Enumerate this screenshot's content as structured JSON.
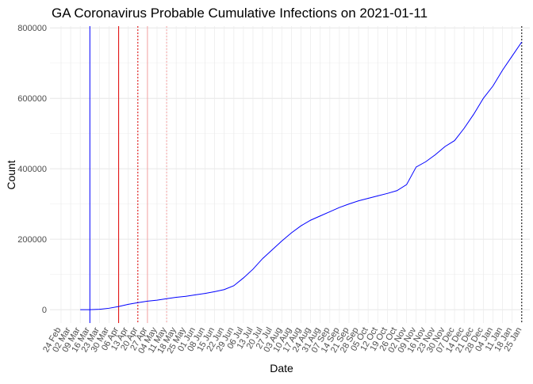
{
  "chart_data": {
    "type": "line",
    "title": "GA Coronavirus Probable Cumulative Infections on 2021-01-11",
    "x_label": "Date",
    "y_label": "Count",
    "categories": [
      "24 Feb",
      "02 Mar",
      "09 Mar",
      "16 Mar",
      "23 Mar",
      "30 Mar",
      "06 Apr",
      "13 Apr",
      "20 Apr",
      "27 Apr",
      "04 May",
      "11 May",
      "18 May",
      "25 May",
      "01 Jun",
      "08 Jun",
      "15 Jun",
      "22 Jun",
      "29 Jun",
      "06 Jul",
      "13 Jul",
      "20 Jul",
      "27 Jul",
      "03 Aug",
      "10 Aug",
      "17 Aug",
      "24 Aug",
      "31 Aug",
      "07 Sep",
      "14 Sep",
      "21 Sep",
      "28 Sep",
      "05 Oct",
      "12 Oct",
      "19 Oct",
      "26 Oct",
      "02 Nov",
      "09 Nov",
      "16 Nov",
      "23 Nov",
      "30 Nov",
      "07 Dec",
      "14 Dec",
      "21 Dec",
      "28 Dec",
      "04 Jan",
      "11 Jan",
      "18 Jan",
      "25 Jan"
    ],
    "series": [
      {
        "color": "#0000ff",
        "values": [
          null,
          null,
          0,
          0,
          1000,
          4000,
          9000,
          15000,
          20000,
          24000,
          27000,
          31000,
          35000,
          38000,
          42000,
          46000,
          51000,
          57000,
          68000,
          90000,
          115000,
          145000,
          170000,
          195000,
          218000,
          238000,
          254000,
          266000,
          278000,
          290000,
          300000,
          309000,
          316000,
          323000,
          330000,
          338000,
          355000,
          405000,
          420000,
          440000,
          463000,
          480000,
          515000,
          555000,
          600000,
          635000,
          680000,
          720000,
          760000
        ]
      }
    ],
    "vlines": [
      {
        "x": "16 Mar",
        "color": "#0000ff",
        "dashed": false
      },
      {
        "x": "06 Apr",
        "color": "#e00000",
        "dashed": false
      },
      {
        "x": "20 Apr",
        "color": "#e00000",
        "dashed": true
      },
      {
        "x": "27 Apr",
        "color": "#f4a0a0",
        "dashed": false
      },
      {
        "x": "11 May",
        "color": "#f4a0a0",
        "dashed": true
      },
      {
        "x": "25 Jan",
        "color": "#000000",
        "dashed": true
      }
    ],
    "ylim": [
      -38000,
      805000
    ],
    "yticks": [
      0,
      200000,
      400000,
      600000,
      800000
    ],
    "grid": true
  }
}
